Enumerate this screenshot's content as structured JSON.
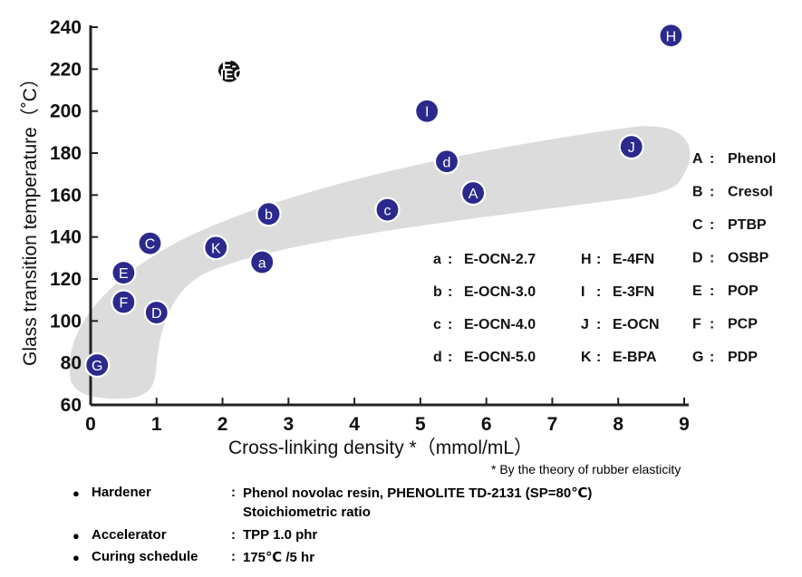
{
  "chart_data": {
    "type": "scatter",
    "xlabel": "Cross-linking density *（mmol/mL）",
    "ylabel": "Glass transition temperature（˚C）",
    "xlim": [
      0,
      9
    ],
    "ylim": [
      60,
      240
    ],
    "xticks": [
      "0",
      "1",
      "2",
      "3",
      "4",
      "5",
      "6",
      "7",
      "8",
      "9"
    ],
    "yticks": [
      "60",
      "80",
      "100",
      "120",
      "140",
      "160",
      "180",
      "200",
      "220",
      "240"
    ],
    "points": [
      {
        "label": "G",
        "x": 0.1,
        "y": 79
      },
      {
        "label": "F",
        "x": 0.5,
        "y": 109
      },
      {
        "label": "E",
        "x": 0.5,
        "y": 123
      },
      {
        "label": "D",
        "x": 1.0,
        "y": 104
      },
      {
        "label": "C",
        "x": 0.9,
        "y": 137
      },
      {
        "label": "K",
        "x": 1.9,
        "y": 135
      },
      {
        "label": "a",
        "x": 2.6,
        "y": 128
      },
      {
        "label": "b",
        "x": 2.7,
        "y": 151
      },
      {
        "label": "c",
        "x": 4.5,
        "y": 153
      },
      {
        "label": "d",
        "x": 5.4,
        "y": 176
      },
      {
        "label": "A",
        "x": 5.8,
        "y": 161
      },
      {
        "label": "I",
        "x": 5.1,
        "y": 200
      },
      {
        "label": "J",
        "x": 8.2,
        "y": 183
      },
      {
        "label": "H",
        "x": 8.8,
        "y": 236
      },
      {
        "label": "E-NEO",
        "label_top": "E-",
        "label_bottom": "NEO",
        "x": 2.1,
        "y": 219,
        "color": "#111111"
      }
    ],
    "legend_left": [
      {
        "key": "a",
        "sep": ":",
        "name": "E-OCN-2.7"
      },
      {
        "key": "b",
        "sep": ":",
        "name": "E-OCN-3.0"
      },
      {
        "key": "c",
        "sep": ":",
        "name": "E-OCN-4.0"
      },
      {
        "key": "d",
        "sep": ":",
        "name": "E-OCN-5.0"
      }
    ],
    "legend_mid": [
      {
        "key": "H",
        "sep": ":",
        "name": "E-4FN"
      },
      {
        "key": "I",
        "sep": ":",
        "name": "E-3FN"
      },
      {
        "key": "J",
        "sep": ":",
        "name": "E-OCN"
      },
      {
        "key": "K",
        "sep": ":",
        "name": "E-BPA"
      }
    ],
    "legend_right": [
      {
        "key": "A",
        "sep": ":",
        "name": "Phenol"
      },
      {
        "key": "B",
        "sep": ":",
        "name": "Cresol"
      },
      {
        "key": "C",
        "sep": ":",
        "name": "PTBP"
      },
      {
        "key": "D",
        "sep": ":",
        "name": "OSBP"
      },
      {
        "key": "E",
        "sep": ":",
        "name": "POP"
      },
      {
        "key": "F",
        "sep": ":",
        "name": "PCP"
      },
      {
        "key": "G",
        "sep": ":",
        "name": "PDP"
      }
    ],
    "colors": {
      "point": "#2b2a8c",
      "point_ring": "#ffffff",
      "band": "#dcdcdc"
    }
  },
  "footnote": "* By the theory of rubber elasticity",
  "conditions": [
    {
      "bullet": "●",
      "label": "Hardener",
      "sep": ":",
      "value": "Phenol novolac resin, PHENOLITE TD-2131 (SP=80℃)",
      "value2": "Stoichiometric ratio"
    },
    {
      "bullet": "●",
      "label": "Accelerator",
      "sep": ":",
      "value": "TPP  1.0 phr",
      "value2": ""
    },
    {
      "bullet": "●",
      "label": "Curing schedule",
      "sep": ":",
      "value": "175℃ /5 hr",
      "value2": ""
    }
  ]
}
